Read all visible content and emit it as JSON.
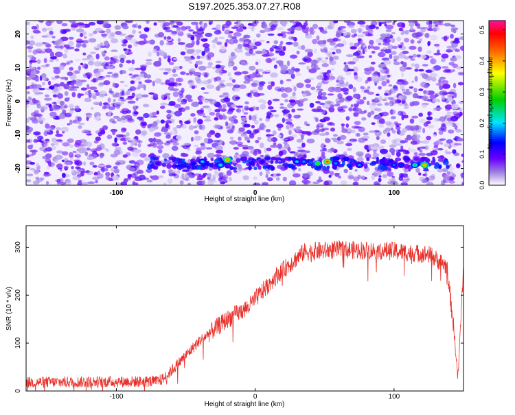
{
  "page_title": "S197.2025.353.07.27.R08",
  "colors": {
    "line": "#e8302a",
    "frame": "#000000"
  },
  "chart_data": [
    {
      "type": "heatmap",
      "title": "S197.2025.353.07.27.R08",
      "xlabel": "Height of straight line (km)",
      "ylabel": "Frequency (Hz)",
      "xlim": [
        -165,
        150
      ],
      "ylim": [
        -25,
        24
      ],
      "x_ticks": [
        {
          "value": -100,
          "label": "-100"
        },
        {
          "value": 0,
          "label": "0"
        },
        {
          "value": 100,
          "label": "100"
        }
      ],
      "y_ticks": [
        {
          "value": 20,
          "label": "20"
        },
        {
          "value": 10,
          "label": "10"
        },
        {
          "value": 0,
          "label": "0"
        },
        {
          "value": -10,
          "label": "-10"
        },
        {
          "value": -20,
          "label": "-20"
        }
      ],
      "colorbar": {
        "label": "Normalized spectral amplitude",
        "range": [
          0,
          0.53
        ],
        "colormap": "rainbow (white-purple-blue-cyan-green-yellow-red-magenta)",
        "ticks": [
          {
            "value": 0,
            "label": "0.0"
          },
          {
            "value": 0.1,
            "label": "0.1"
          },
          {
            "value": 0.2,
            "label": "0.2"
          },
          {
            "value": 0.3,
            "label": "0.3"
          },
          {
            "value": 0.4,
            "label": "0.4"
          },
          {
            "value": 0.5,
            "label": "0.5"
          }
        ]
      },
      "background_level": 0.05,
      "signal_band_frequency": -18.5,
      "signal_band_x_range": [
        -80,
        140
      ],
      "hot_spots": [
        {
          "x": -20,
          "y": -17.5,
          "value": 0.42
        },
        {
          "x": -25,
          "y": -19,
          "value": 0.22
        },
        {
          "x": -38,
          "y": -18,
          "value": 0.2
        },
        {
          "x": 30,
          "y": -18,
          "value": 0.2
        },
        {
          "x": 35,
          "y": -18,
          "value": 0.18
        },
        {
          "x": 45,
          "y": -18.5,
          "value": 0.3
        },
        {
          "x": 52,
          "y": -18,
          "value": 0.45
        },
        {
          "x": 58,
          "y": -18.5,
          "value": 0.18
        },
        {
          "x": 75,
          "y": -19,
          "value": 0.18
        },
        {
          "x": 100,
          "y": -19,
          "value": 0.17
        },
        {
          "x": 105,
          "y": -19,
          "value": 0.15
        },
        {
          "x": 115,
          "y": -19,
          "value": 0.25
        },
        {
          "x": 122,
          "y": -19,
          "value": 0.4
        },
        {
          "x": -70,
          "y": -18.5,
          "value": 0.12
        },
        {
          "x": 5,
          "y": -18,
          "value": 0.13
        }
      ]
    },
    {
      "type": "line",
      "xlabel": "Height of straight line (km)",
      "ylabel": "SNR (10 * v/v)",
      "xlim": [
        -165,
        150
      ],
      "ylim": [
        0,
        345
      ],
      "x_ticks": [
        {
          "value": -100,
          "label": "-100"
        },
        {
          "value": 0,
          "label": "0"
        },
        {
          "value": 100,
          "label": "100"
        }
      ],
      "y_ticks": [
        {
          "value": 0,
          "label": "0"
        },
        {
          "value": 100,
          "label": "100"
        },
        {
          "value": 200,
          "label": "200"
        },
        {
          "value": 300,
          "label": "300"
        }
      ],
      "series": [
        {
          "x": [
            -165,
            -70,
            -65,
            -40,
            -20,
            -5,
            15,
            35,
            60,
            100,
            125,
            138,
            143,
            146,
            150
          ],
          "y": [
            18,
            20,
            28,
            105,
            150,
            175,
            240,
            290,
            295,
            292,
            285,
            260,
            130,
            25,
            260
          ],
          "noise_amplitude": 12
        }
      ]
    }
  ]
}
